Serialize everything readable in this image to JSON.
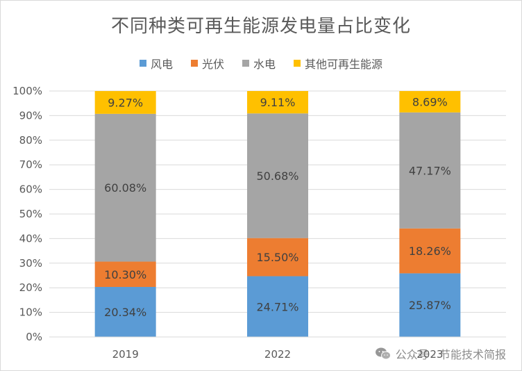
{
  "chart_data": {
    "type": "bar",
    "stacked": true,
    "title": "不同种类可再生能源发电量占比变化",
    "categories": [
      "2019",
      "2022",
      "2023"
    ],
    "ylim": [
      0,
      100
    ],
    "yticks": [
      "0%",
      "10%",
      "20%",
      "30%",
      "40%",
      "50%",
      "60%",
      "70%",
      "80%",
      "90%",
      "100%"
    ],
    "grid": true,
    "legend_position": "top",
    "series": [
      {
        "name": "风电",
        "color": "#5b9bd5",
        "values": [
          20.34,
          24.71,
          25.87
        ],
        "labels": [
          "20.34%",
          "24.71%",
          "25.87%"
        ]
      },
      {
        "name": "光伏",
        "color": "#ed7d31",
        "values": [
          10.3,
          15.5,
          18.26
        ],
        "labels": [
          "10.30%",
          "15.50%",
          "18.26%"
        ]
      },
      {
        "name": "水电",
        "color": "#a5a5a5",
        "values": [
          60.08,
          50.68,
          47.17
        ],
        "labels": [
          "60.08%",
          "50.68%",
          "47.17%"
        ]
      },
      {
        "name": "其他可再生能源",
        "color": "#ffc000",
        "values": [
          9.27,
          9.11,
          8.69
        ],
        "labels": [
          "9.27%",
          "9.11%",
          "8.69%"
        ]
      }
    ]
  },
  "watermark": {
    "text": "公众号 · 节能技术简报",
    "icon": "wechat-icon"
  }
}
